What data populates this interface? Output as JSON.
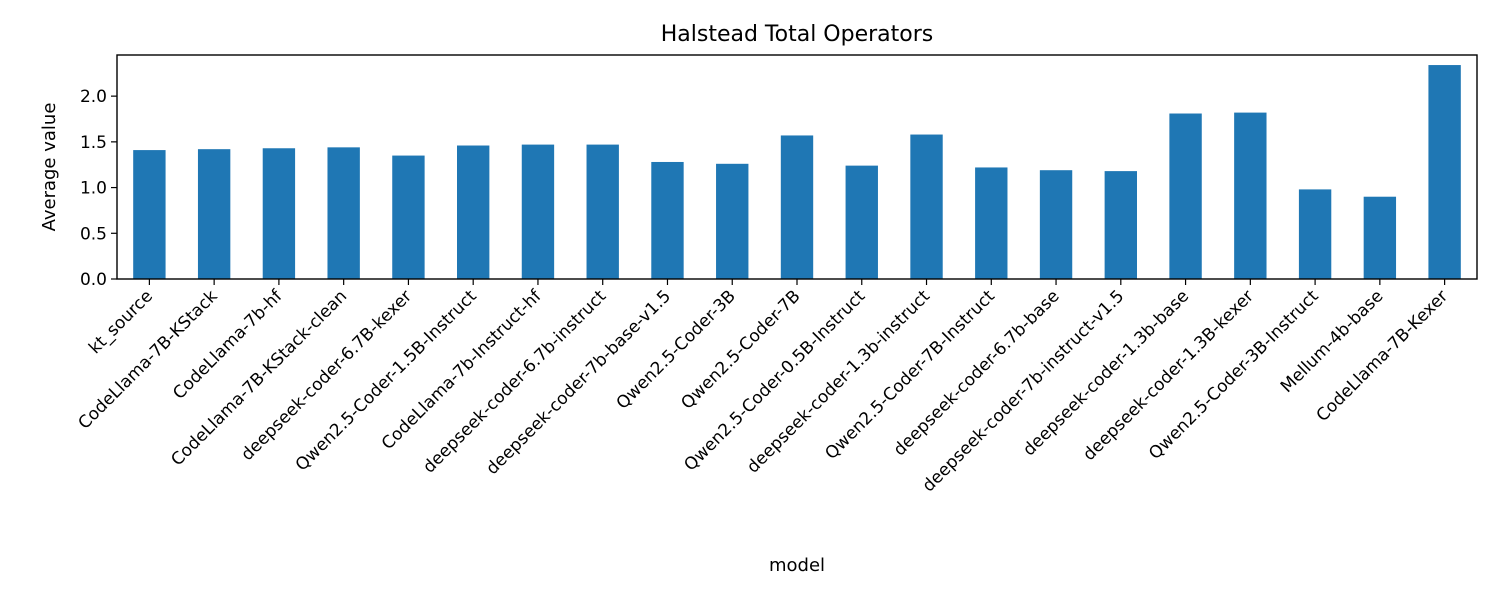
{
  "chart_data": {
    "type": "bar",
    "title": "Halstead Total Operators",
    "xlabel": "model",
    "ylabel": "Average value",
    "ylim": [
      0,
      2.45
    ],
    "yticks": [
      0.0,
      0.5,
      1.0,
      1.5,
      2.0
    ],
    "ytick_labels": [
      "0.0",
      "0.5",
      "1.0",
      "1.5",
      "2.0"
    ],
    "grid": false,
    "bar_color": "#1f77b4",
    "categories": [
      "kt_source",
      "CodeLlama-7B-KStack",
      "CodeLlama-7b-hf",
      "CodeLlama-7B-KStack-clean",
      "deepseek-coder-6.7B-kexer",
      "Qwen2.5-Coder-1.5B-Instruct",
      "CodeLlama-7b-Instruct-hf",
      "deepseek-coder-6.7b-instruct",
      "deepseek-coder-7b-base-v1.5",
      "Qwen2.5-Coder-3B",
      "Qwen2.5-Coder-7B",
      "Qwen2.5-Coder-0.5B-Instruct",
      "deepseek-coder-1.3b-instruct",
      "Qwen2.5-Coder-7B-Instruct",
      "deepseek-coder-6.7b-base",
      "deepseek-coder-7b-instruct-v1.5",
      "deepseek-coder-1.3b-base",
      "deepseek-coder-1.3B-kexer",
      "Qwen2.5-Coder-3B-Instruct",
      "Mellum-4b-base",
      "CodeLlama-7B-Kexer"
    ],
    "values": [
      1.41,
      1.42,
      1.43,
      1.44,
      1.35,
      1.46,
      1.47,
      1.47,
      1.28,
      1.26,
      1.57,
      1.24,
      1.58,
      1.22,
      1.19,
      1.18,
      1.81,
      1.82,
      0.98,
      0.9,
      2.34
    ]
  }
}
